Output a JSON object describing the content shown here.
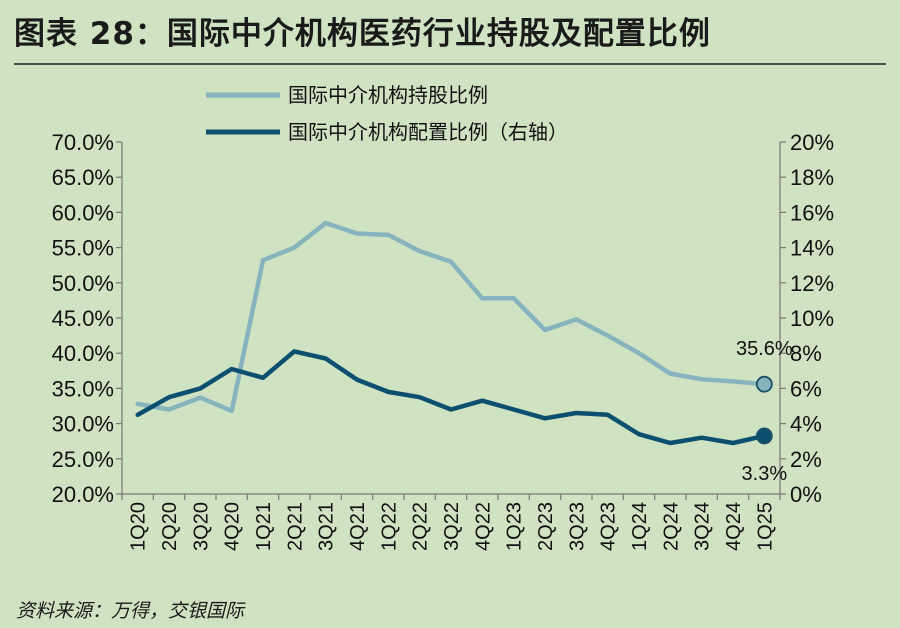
{
  "title": "图表 28：国际中介机构医药行业持股及配置比例",
  "source": "资料来源：万得，交银国际",
  "colors": {
    "background": "#cfe3c3",
    "holding": "#86b3be",
    "allocation": "#0d4f6f"
  },
  "chart_data": {
    "type": "line",
    "categories": [
      "1Q20",
      "2Q20",
      "3Q20",
      "4Q20",
      "1Q21",
      "2Q21",
      "3Q21",
      "4Q21",
      "1Q22",
      "2Q22",
      "3Q22",
      "4Q22",
      "1Q23",
      "2Q23",
      "3Q23",
      "4Q23",
      "1Q24",
      "2Q24",
      "3Q24",
      "4Q24",
      "1Q25"
    ],
    "series": [
      {
        "name": "国际中介机构持股比例",
        "axis": "left",
        "values": [
          32.8,
          32.0,
          33.7,
          31.8,
          53.2,
          55.0,
          58.5,
          57.0,
          56.8,
          54.5,
          53.0,
          47.8,
          47.8,
          43.3,
          44.8,
          42.5,
          40.0,
          37.1,
          36.3,
          36.0,
          35.6
        ]
      },
      {
        "name": "国际中介机构配置比例（右轴）",
        "axis": "right",
        "values": [
          4.5,
          5.5,
          6.0,
          7.1,
          6.6,
          8.1,
          7.7,
          6.5,
          5.8,
          5.5,
          4.8,
          5.3,
          4.8,
          4.3,
          4.6,
          4.5,
          3.4,
          2.9,
          3.2,
          2.9,
          3.3
        ]
      }
    ],
    "y_left": {
      "min": 20,
      "max": 70,
      "step": 5,
      "format": "percent1"
    },
    "y_right": {
      "min": 0,
      "max": 20,
      "step": 2,
      "format": "percent0"
    },
    "annotations": [
      {
        "series": 0,
        "index": 20,
        "label": "35.6%"
      },
      {
        "series": 1,
        "index": 20,
        "label": "3.3%"
      }
    ],
    "legend_position": "top-center"
  }
}
